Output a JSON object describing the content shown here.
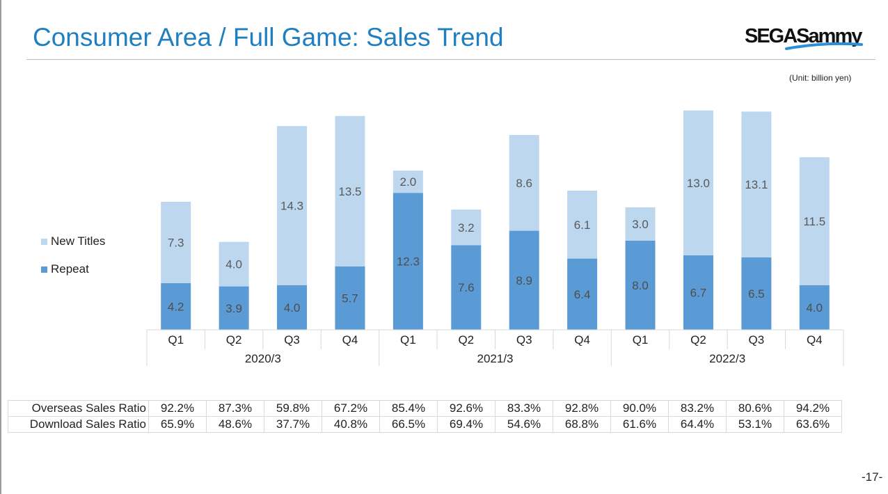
{
  "title": "Consumer Area / Full Game: Sales Trend",
  "logo_text": "SEGASammy",
  "unit_note": "(Unit: billion yen)",
  "page_number": "-17-",
  "colors": {
    "title": "#1f7fc0",
    "new_titles": "#bdd7ee",
    "repeat": "#5b9bd5",
    "label_dark": "#4d4d4d",
    "label_light": "#595959"
  },
  "chart_data": {
    "type": "bar",
    "stacked": true,
    "categories": [
      "Q1",
      "Q2",
      "Q3",
      "Q4",
      "Q1",
      "Q2",
      "Q3",
      "Q4",
      "Q1",
      "Q2",
      "Q3",
      "Q4"
    ],
    "groups": [
      {
        "label": "2020/3",
        "count": 4
      },
      {
        "label": "2021/3",
        "count": 4
      },
      {
        "label": "2022/3",
        "count": 4
      }
    ],
    "series": [
      {
        "name": "Repeat",
        "color": "#5b9bd5",
        "values": [
          4.2,
          3.9,
          4.0,
          5.7,
          12.3,
          7.6,
          8.9,
          6.4,
          8.0,
          6.7,
          6.5,
          4.0
        ]
      },
      {
        "name": "New Titles",
        "color": "#bdd7ee",
        "values": [
          7.3,
          4.0,
          14.3,
          13.5,
          2.0,
          3.2,
          8.6,
          6.1,
          3.0,
          13.0,
          13.1,
          11.5
        ]
      }
    ],
    "legend": {
      "position": "left",
      "order": [
        "New Titles",
        "Repeat"
      ]
    },
    "ylim": [
      0,
      22
    ],
    "grid": false,
    "xlabel": "",
    "ylabel": ""
  },
  "table": {
    "rows": [
      {
        "label": "Overseas Sales Ratio",
        "values": [
          "92.2%",
          "87.3%",
          "59.8%",
          "67.2%",
          "85.4%",
          "92.6%",
          "83.3%",
          "92.8%",
          "90.0%",
          "83.2%",
          "80.6%",
          "94.2%"
        ]
      },
      {
        "label": "Download Sales Ratio",
        "values": [
          "65.9%",
          "48.6%",
          "37.7%",
          "40.8%",
          "66.5%",
          "69.4%",
          "54.6%",
          "68.8%",
          "61.6%",
          "64.4%",
          "53.1%",
          "63.6%"
        ]
      }
    ]
  }
}
